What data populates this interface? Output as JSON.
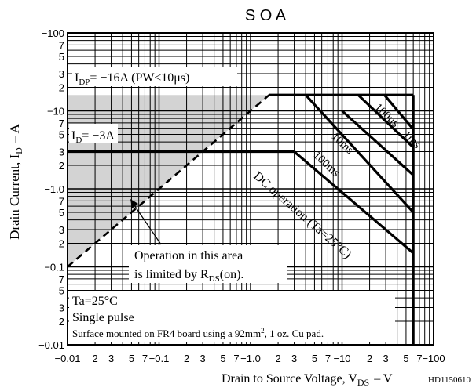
{
  "chart_data": {
    "type": "line",
    "title": "S O A",
    "xlabel": {
      "main": "Drain to Source Voltage, V",
      "sub": "DS",
      "tail": "– V"
    },
    "ylabel": {
      "main": "Drain Current, I",
      "sub": "D",
      "tail": "– A"
    },
    "doc_code": "HD1150610",
    "x_scale": "log",
    "y_scale": "log",
    "xlim": [
      0.01,
      100
    ],
    "ylim": [
      0.01,
      100
    ],
    "grid": true,
    "x_tick_labels": [
      {
        "v": 0.01,
        "t": "−0.01"
      },
      {
        "v": 0.02,
        "t": "2"
      },
      {
        "v": 0.03,
        "t": "3"
      },
      {
        "v": 0.05,
        "t": "5"
      },
      {
        "v": 0.07,
        "t": "7"
      },
      {
        "v": 0.1,
        "t": "−0.1"
      },
      {
        "v": 0.2,
        "t": "2"
      },
      {
        "v": 0.3,
        "t": "3"
      },
      {
        "v": 0.5,
        "t": "5"
      },
      {
        "v": 0.7,
        "t": "7"
      },
      {
        "v": 1,
        "t": "−1.0"
      },
      {
        "v": 2,
        "t": "2"
      },
      {
        "v": 3,
        "t": "3"
      },
      {
        "v": 5,
        "t": "5"
      },
      {
        "v": 7,
        "t": "7"
      },
      {
        "v": 10,
        "t": "−10"
      },
      {
        "v": 20,
        "t": "2"
      },
      {
        "v": 30,
        "t": "3"
      },
      {
        "v": 50,
        "t": "5"
      },
      {
        "v": 70,
        "t": "7"
      },
      {
        "v": 100,
        "t": "−100"
      }
    ],
    "y_tick_labels": [
      {
        "v": 100,
        "t": "−100"
      },
      {
        "v": 70,
        "t": "7"
      },
      {
        "v": 50,
        "t": "5"
      },
      {
        "v": 30,
        "t": "3"
      },
      {
        "v": 20,
        "t": "2"
      },
      {
        "v": 10,
        "t": "−10"
      },
      {
        "v": 7,
        "t": "7"
      },
      {
        "v": 5,
        "t": "5"
      },
      {
        "v": 3,
        "t": "3"
      },
      {
        "v": 2,
        "t": "2"
      },
      {
        "v": 1,
        "t": "−1.0"
      },
      {
        "v": 0.7,
        "t": "7"
      },
      {
        "v": 0.5,
        "t": "5"
      },
      {
        "v": 0.3,
        "t": "3"
      },
      {
        "v": 0.2,
        "t": "2"
      },
      {
        "v": 0.1,
        "t": "−0.1"
      },
      {
        "v": 0.07,
        "t": "7"
      },
      {
        "v": 0.05,
        "t": "5"
      },
      {
        "v": 0.03,
        "t": "3"
      },
      {
        "v": 0.02,
        "t": "2"
      },
      {
        "v": 0.01,
        "t": "−0.01"
      }
    ],
    "series": [
      {
        "id": "rdson-limit",
        "dash": true,
        "points": [
          [
            0.01,
            0.1
          ],
          [
            1.6,
            16
          ]
        ]
      },
      {
        "id": "idp-limit",
        "points": [
          [
            1.6,
            16
          ],
          [
            60,
            16
          ]
        ]
      },
      {
        "id": "id-limit",
        "points": [
          [
            0.01,
            3
          ],
          [
            3,
            3
          ]
        ]
      },
      {
        "id": "100us",
        "points": [
          [
            29,
            16
          ],
          [
            60,
            5.8
          ]
        ]
      },
      {
        "id": "1ms",
        "points": [
          [
            15,
            16
          ],
          [
            60,
            3.4
          ]
        ]
      },
      {
        "id": "10ms",
        "points": [
          [
            10,
            10
          ],
          [
            60,
            1.5
          ]
        ]
      },
      {
        "id": "100ms",
        "points": [
          [
            4,
            16
          ],
          [
            60,
            0.5
          ]
        ]
      },
      {
        "id": "dc",
        "points": [
          [
            3,
            3
          ],
          [
            60,
            0.15
          ]
        ]
      },
      {
        "id": "vdss-limit",
        "points": [
          [
            60,
            16
          ],
          [
            60,
            0.01
          ]
        ]
      }
    ],
    "shaded_region": [
      [
        0.01,
        0.1
      ],
      [
        1.6,
        16
      ],
      [
        0.01,
        16
      ]
    ],
    "annotations": {
      "idp": {
        "main": "I",
        "sub": "DP",
        "tail": "= −16A (PW≤10μs)"
      },
      "id": {
        "main": "I",
        "sub": "D",
        "tail": "= −3A"
      },
      "t100us": "100μs",
      "t1ms": "1ms",
      "t10ms": "10ms",
      "t100ms": "100ms",
      "dc": "DC operation (Ta=25°C)",
      "op1": "Operation in this area",
      "op2": {
        "main": "is limited by R",
        "sub": "DS",
        "tail": "(on)."
      },
      "ta": "Ta=25°C",
      "pulse": "Single pulse",
      "mount": {
        "main": "Surface mounted on FR4 board using a 92mm",
        "sup": "2",
        "tail": ", 1 oz. Cu pad."
      }
    }
  }
}
